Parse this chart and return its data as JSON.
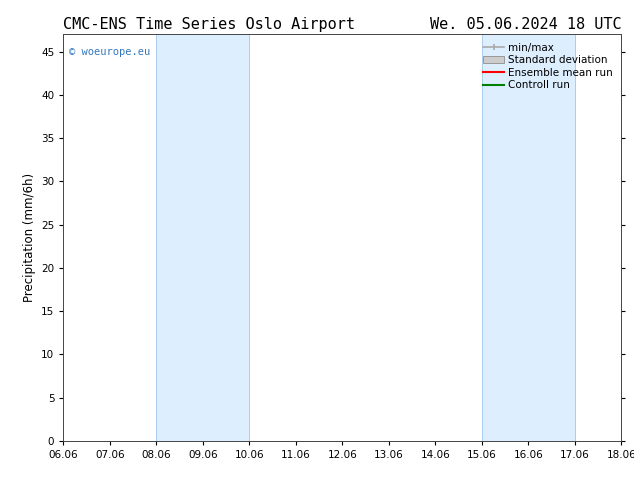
{
  "title_left": "CMC-ENS Time Series Oslo Airport",
  "title_right": "We. 05.06.2024 18 UTC",
  "ylabel": "Precipitation (mm/6h)",
  "xlabel": "",
  "ylim": [
    0,
    47
  ],
  "yticks": [
    0,
    5,
    10,
    15,
    20,
    25,
    30,
    35,
    40,
    45
  ],
  "xtick_labels": [
    "06.06",
    "07.06",
    "08.06",
    "09.06",
    "10.06",
    "11.06",
    "12.06",
    "13.06",
    "14.06",
    "15.06",
    "16.06",
    "17.06",
    "18.06"
  ],
  "x_tick_positions": [
    6,
    7,
    8,
    9,
    10,
    11,
    12,
    13,
    14,
    15,
    16,
    17,
    18
  ],
  "xlim": [
    6.0,
    18.0
  ],
  "shaded_bands": [
    {
      "x_start": 8.0,
      "x_end": 10.0
    },
    {
      "x_start": 15.0,
      "x_end": 17.0
    }
  ],
  "shade_color": "#ddeeff",
  "shade_edge_color": "#aaccee",
  "bg_color": "#ffffff",
  "watermark_text": "© woeurope.eu",
  "watermark_color": "#3377bb",
  "title_fontsize": 11,
  "tick_fontsize": 7.5,
  "ylabel_fontsize": 8.5,
  "legend_fontsize": 7.5,
  "minmax_color": "#aaaaaa",
  "std_facecolor": "#cccccc",
  "std_edgecolor": "#999999",
  "ensemble_color": "red",
  "control_color": "green"
}
